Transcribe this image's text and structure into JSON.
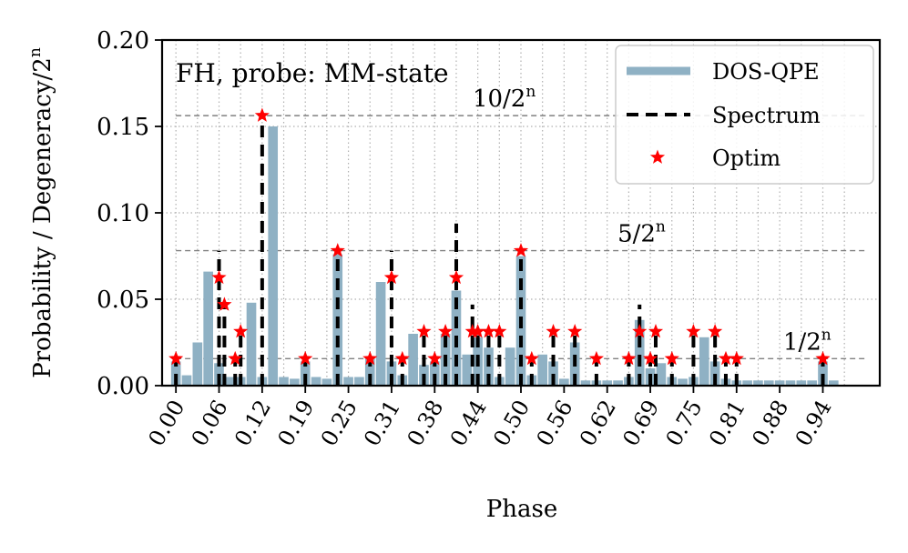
{
  "chart_data": {
    "type": "bar",
    "title": "",
    "annotation": "FH, probe: MM-state",
    "xlabel": "Phase",
    "ylabel": "Probability / Degeneracy/2^n",
    "ylim": [
      0,
      0.2
    ],
    "xlim": [
      -0.02,
      1.02
    ],
    "xticks": [
      0.0,
      0.0625,
      0.125,
      0.1875,
      0.25,
      0.3125,
      0.375,
      0.4375,
      0.5,
      0.5625,
      0.625,
      0.6875,
      0.75,
      0.8125,
      0.875,
      0.9375
    ],
    "xtick_labels": [
      "0.00",
      "0.06",
      "0.12",
      "0.19",
      "0.25",
      "0.31",
      "0.38",
      "0.44",
      "0.50",
      "0.56",
      "0.62",
      "0.69",
      "0.75",
      "0.81",
      "0.88",
      "0.94"
    ],
    "yticks": [
      0.0,
      0.05,
      0.1,
      0.15,
      0.2
    ],
    "ytick_labels": [
      "0.00",
      "0.05",
      "0.10",
      "0.15",
      "0.20"
    ],
    "ylabel_parts": {
      "main": "Probability / Degeneracy/2",
      "sup": "n"
    },
    "legend": {
      "position": "top-right",
      "entries": [
        {
          "label": "DOS-QPE",
          "style": "bar"
        },
        {
          "label": "Spectrum",
          "style": "dashed"
        },
        {
          "label": "Optim",
          "style": "star"
        }
      ]
    },
    "reference_lines": [
      {
        "value": 0.15625,
        "text": "10/2",
        "sup": "n",
        "label_x": 0.43
      },
      {
        "value": 0.078125,
        "text": "5/2",
        "sup": "n",
        "label_x": 0.64
      },
      {
        "value": 0.015625,
        "text": "1/2",
        "sup": "n",
        "label_x": 0.88
      }
    ],
    "series": [
      {
        "name": "DOS-QPE",
        "bin_width": 0.015625,
        "bins": [
          0.0,
          0.015625,
          0.03125,
          0.046875,
          0.0625,
          0.078125,
          0.09375,
          0.109375,
          0.125,
          0.140625,
          0.15625,
          0.171875,
          0.1875,
          0.203125,
          0.21875,
          0.234375,
          0.25,
          0.265625,
          0.28125,
          0.296875,
          0.3125,
          0.328125,
          0.34375,
          0.359375,
          0.375,
          0.390625,
          0.40625,
          0.421875,
          0.4375,
          0.453125,
          0.46875,
          0.484375,
          0.5,
          0.515625,
          0.53125,
          0.546875,
          0.5625,
          0.578125,
          0.59375,
          0.609375,
          0.625,
          0.640625,
          0.65625,
          0.671875,
          0.6875,
          0.703125,
          0.71875,
          0.734375,
          0.75,
          0.765625,
          0.78125,
          0.796875,
          0.8125,
          0.828125,
          0.84375,
          0.859375,
          0.875,
          0.890625,
          0.90625,
          0.921875,
          0.9375,
          0.953125
        ],
        "values": [
          0.014,
          0.006,
          0.025,
          0.066,
          0.013,
          0.005,
          0.005,
          0.048,
          0.005,
          0.15,
          0.005,
          0.004,
          0.014,
          0.005,
          0.004,
          0.076,
          0.005,
          0.005,
          0.016,
          0.06,
          0.014,
          0.006,
          0.03,
          0.012,
          0.014,
          0.03,
          0.055,
          0.018,
          0.028,
          0.022,
          0.005,
          0.022,
          0.075,
          0.006,
          0.018,
          0.014,
          0.004,
          0.025,
          0.003,
          0.003,
          0.003,
          0.003,
          0.005,
          0.038,
          0.01,
          0.013,
          0.005,
          0.004,
          0.005,
          0.028,
          0.014,
          0.004,
          0.003,
          0.003,
          0.003,
          0.003,
          0.003,
          0.003,
          0.003,
          0.003,
          0.014,
          0.003
        ]
      },
      {
        "name": "Spectrum",
        "x": [
          0.0,
          0.0625,
          0.0703,
          0.0859,
          0.0938,
          0.125,
          0.1875,
          0.2344,
          0.2813,
          0.3125,
          0.3281,
          0.3594,
          0.375,
          0.3906,
          0.4063,
          0.4297,
          0.4375,
          0.4531,
          0.4688,
          0.5,
          0.5156,
          0.5469,
          0.5781,
          0.6094,
          0.6563,
          0.6719,
          0.6875,
          0.6953,
          0.7188,
          0.75,
          0.7813,
          0.7969,
          0.8125,
          0.9375
        ],
        "values": [
          0.0156,
          0.0781,
          0.0469,
          0.0156,
          0.0313,
          0.1563,
          0.0156,
          0.0781,
          0.0156,
          0.0781,
          0.0156,
          0.0313,
          0.0156,
          0.0313,
          0.0938,
          0.0469,
          0.0313,
          0.0313,
          0.0313,
          0.0781,
          0.0156,
          0.0313,
          0.0313,
          0.0156,
          0.0156,
          0.0469,
          0.0156,
          0.0313,
          0.0156,
          0.0313,
          0.0313,
          0.0156,
          0.0156,
          0.0156
        ]
      },
      {
        "name": "Optim",
        "x": [
          0.0,
          0.0625,
          0.0703,
          0.0859,
          0.0938,
          0.125,
          0.1875,
          0.2344,
          0.2813,
          0.3125,
          0.3281,
          0.3594,
          0.375,
          0.3906,
          0.4063,
          0.4297,
          0.4375,
          0.4531,
          0.4688,
          0.5,
          0.5156,
          0.5469,
          0.5781,
          0.6094,
          0.6563,
          0.6719,
          0.6875,
          0.6953,
          0.7188,
          0.75,
          0.7813,
          0.7969,
          0.8125,
          0.9375
        ],
        "values": [
          0.0156,
          0.0625,
          0.0469,
          0.0156,
          0.0313,
          0.1563,
          0.0156,
          0.0781,
          0.0156,
          0.0625,
          0.0156,
          0.0313,
          0.0156,
          0.0313,
          0.0625,
          0.0313,
          0.0313,
          0.0313,
          0.0313,
          0.0781,
          0.0156,
          0.0313,
          0.0313,
          0.0156,
          0.0156,
          0.0313,
          0.0156,
          0.0313,
          0.0156,
          0.0313,
          0.0313,
          0.0156,
          0.0156,
          0.0156
        ]
      }
    ],
    "colors": {
      "bars": "#8fb1c4",
      "spectrum": "#000000",
      "optim": "#ff0000",
      "grid": "#b0b0b0",
      "reference": "#808080",
      "legend_border": "#cccccc"
    }
  }
}
